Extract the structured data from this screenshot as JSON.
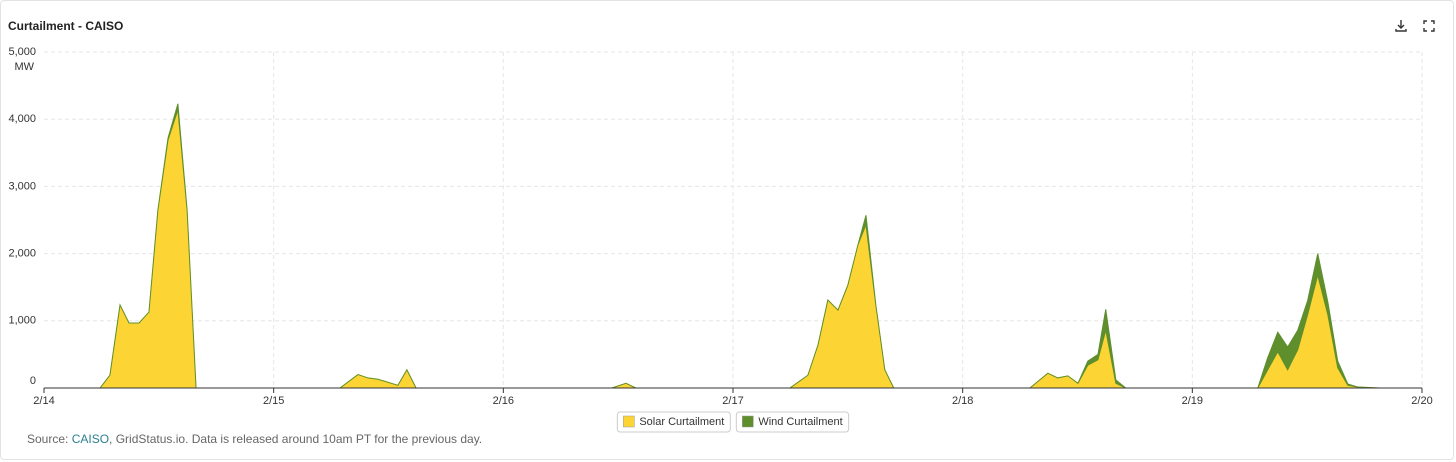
{
  "chart_data": {
    "type": "stacked_area",
    "title": "Curtailment - CAISO",
    "ylabel": "MW",
    "x": [
      0,
      0.244,
      0.287,
      0.331,
      0.37,
      0.414,
      0.457,
      0.496,
      0.54,
      0.583,
      0.623,
      0.662,
      1.289,
      1.367,
      1.41,
      1.454,
      1.541,
      1.58,
      1.62,
      2.473,
      2.534,
      2.577,
      3.248,
      3.326,
      3.37,
      3.413,
      3.457,
      3.5,
      3.544,
      3.579,
      3.622,
      3.661,
      3.7,
      4.293,
      4.371,
      4.414,
      4.458,
      4.502,
      4.545,
      4.589,
      4.623,
      4.667,
      4.71,
      5.285,
      5.328,
      5.372,
      5.415,
      5.459,
      5.502,
      5.546,
      5.59,
      5.633,
      5.677,
      5.72,
      5.816,
      6
    ],
    "series": [
      {
        "name": "Solar Curtailment",
        "color": "#fcd535",
        "values": [
          0,
          0,
          190,
          1235,
          967,
          967,
          1130,
          2650,
          3690,
          4140,
          2650,
          0,
          0,
          200,
          150,
          130,
          40,
          270,
          0,
          0,
          70,
          0,
          0,
          190,
          640,
          1310,
          1160,
          1530,
          2130,
          2430,
          1230,
          270,
          0,
          0,
          220,
          150,
          180,
          70,
          340,
          420,
          860,
          70,
          0,
          0,
          270,
          540,
          270,
          570,
          1090,
          1680,
          1090,
          300,
          40,
          15,
          0,
          0
        ]
      },
      {
        "name": "Wind Curtailment",
        "color": "#5e8f2c",
        "values": [
          0,
          0,
          0,
          0,
          0,
          0,
          0,
          0,
          30,
          90,
          0,
          0,
          0,
          0,
          0,
          0,
          0,
          0,
          0,
          0,
          0,
          0,
          0,
          0,
          0,
          0,
          0,
          0,
          0,
          140,
          0,
          0,
          0,
          0,
          0,
          0,
          0,
          0,
          60,
          80,
          310,
          50,
          0,
          0,
          180,
          290,
          340,
          290,
          210,
          320,
          190,
          100,
          20,
          0,
          0,
          0
        ]
      }
    ],
    "xlim": [
      0,
      6
    ],
    "xticks": [
      {
        "value": 0,
        "label": "2/14"
      },
      {
        "value": 1,
        "label": "2/15"
      },
      {
        "value": 2,
        "label": "2/16"
      },
      {
        "value": 3,
        "label": "2/17"
      },
      {
        "value": 4,
        "label": "2/18"
      },
      {
        "value": 5,
        "label": "2/19"
      },
      {
        "value": 6,
        "label": "2/20"
      }
    ],
    "ylim": [
      0,
      5000
    ],
    "yticks": [
      0,
      {
        "value": 1000,
        "label": "1,000"
      },
      {
        "value": 2000,
        "label": "2,000"
      },
      {
        "value": 3000,
        "label": "3,000"
      },
      {
        "value": 4000,
        "label": "4,000"
      },
      {
        "value": 5000,
        "label": "5,000"
      }
    ],
    "grid": true,
    "legend": "bottom"
  },
  "source": {
    "prefix": "Source: ",
    "link": "CAISO",
    "suffix": ", GridStatus.io. Data is released around 10am PT for the previous day."
  }
}
